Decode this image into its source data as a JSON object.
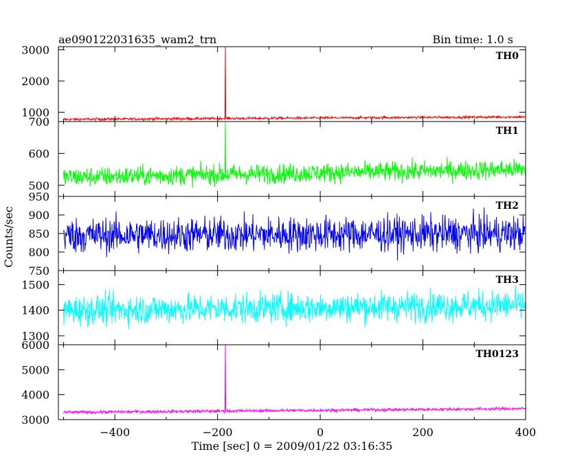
{
  "header": {
    "file_name": "ae090122031635_wam2_trn",
    "bin_time": "Bin time: 1.0 s"
  },
  "chart_data": {
    "type": "line",
    "xlabel": "Time [sec] 0 = 2009/01/22 03:16:35",
    "ylabel": "Counts/sec",
    "xlim": [
      -510,
      400
    ],
    "x_range": [
      -500,
      400
    ],
    "x_ticks": [
      -400,
      -200,
      0,
      200,
      400
    ],
    "x_tick_labels": [
      "−400",
      "−200",
      "0",
      "200",
      "400"
    ],
    "burst_time": -185,
    "panels": [
      {
        "name": "TH0",
        "color": "#ff0000",
        "ylim": [
          700,
          3100
        ],
        "y_ticks": [
          1000,
          2000,
          3000
        ],
        "mean": 770,
        "noise": 30,
        "trend": 80,
        "peak": 3100
      },
      {
        "name": "TH1",
        "color": "#00ff00",
        "ylim": [
          465,
          700
        ],
        "y_ticks": [
          500,
          600,
          700
        ],
        "mean": 525,
        "noise": 22,
        "trend": 25,
        "peak": 700
      },
      {
        "name": "TH2",
        "color": "#0000ff",
        "ylim": [
          750,
          950
        ],
        "y_ticks": [
          750,
          800,
          850,
          900,
          950
        ],
        "mean": 845,
        "noise": 34,
        "trend": 5,
        "peak": null
      },
      {
        "name": "TH3",
        "color": "#00ffff",
        "ylim": [
          1265,
          1555
        ],
        "y_ticks": [
          1300,
          1400,
          1500
        ],
        "mean": 1400,
        "noise": 42,
        "trend": 20,
        "peak": null
      },
      {
        "name": "TH0123",
        "color": "#ff00ff",
        "ylim": [
          3000,
          6000
        ],
        "y_ticks": [
          3000,
          4000,
          5000,
          6000
        ],
        "mean": 3290,
        "noise": 45,
        "trend": 150,
        "peak": 6000
      }
    ]
  }
}
